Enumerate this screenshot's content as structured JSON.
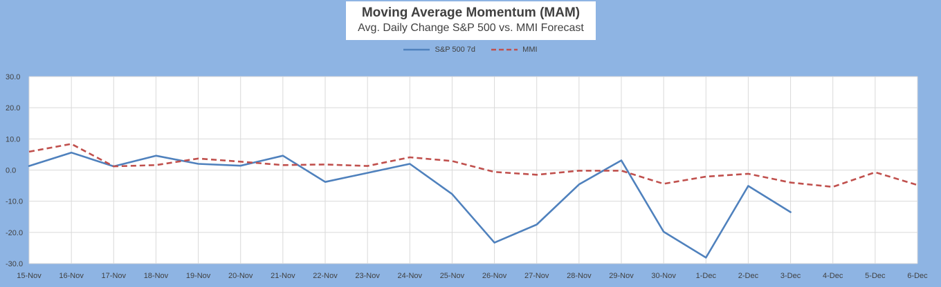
{
  "chart_data": {
    "type": "line",
    "title": "Moving Average Momentum (MAM)",
    "subtitle": "Avg. Daily Change S&P 500 vs. MMI Forecast",
    "categories": [
      "15-Nov",
      "16-Nov",
      "17-Nov",
      "18-Nov",
      "19-Nov",
      "20-Nov",
      "21-Nov",
      "22-Nov",
      "23-Nov",
      "24-Nov",
      "25-Nov",
      "26-Nov",
      "27-Nov",
      "28-Nov",
      "29-Nov",
      "30-Nov",
      "1-Dec",
      "2-Dec",
      "3-Dec",
      "4-Dec",
      "5-Dec",
      "6-Dec"
    ],
    "yticks": [
      "30.0",
      "20.0",
      "10.0",
      "0.0",
      "-10.0",
      "-20.0",
      "-30.0"
    ],
    "ylim": [
      -30,
      30
    ],
    "grid": true,
    "legend_position": "top",
    "series": [
      {
        "name": "S&P 500 7d",
        "color": "#4f81bd",
        "style": "solid",
        "values": [
          1.3,
          5.6,
          1.2,
          4.6,
          2.0,
          1.4,
          4.6,
          -3.8,
          -0.9,
          2.0,
          -7.7,
          -23.3,
          -17.5,
          -4.6,
          3.1,
          -19.8,
          -28.1,
          -5.1,
          -13.5,
          null,
          null,
          null
        ]
      },
      {
        "name": "MMI",
        "color": "#c0504d",
        "style": "dashed",
        "values": [
          5.9,
          8.4,
          1.2,
          1.6,
          3.7,
          2.7,
          1.6,
          1.8,
          1.3,
          4.1,
          2.9,
          -0.6,
          -1.5,
          -0.2,
          -0.2,
          -4.4,
          -2.1,
          -1.2,
          -4.0,
          -5.4,
          -0.7,
          -4.8
        ]
      }
    ]
  }
}
